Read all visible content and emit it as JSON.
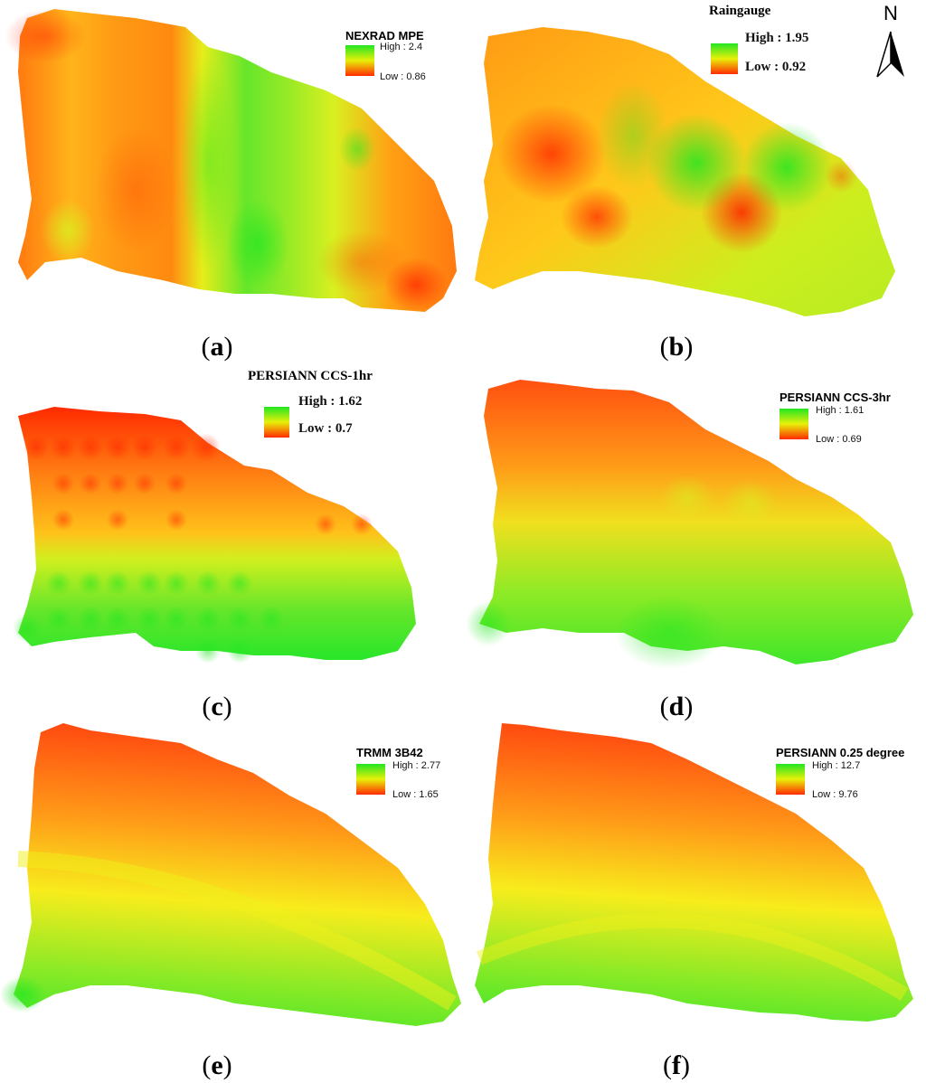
{
  "panels": [
    {
      "id": "a",
      "caption": "a",
      "legend": {
        "title": "NEXRAD MPE",
        "high": "High : 2.4",
        "low": "Low : 0.86"
      }
    },
    {
      "id": "b",
      "caption": "b",
      "legend": {
        "title": "Raingauge",
        "high": "High : 1.95",
        "low": "Low : 0.92"
      }
    },
    {
      "id": "c",
      "caption": "c",
      "legend": {
        "title": "PERSIANN CCS-1hr",
        "high": "High : 1.62",
        "low": "Low : 0.7"
      }
    },
    {
      "id": "d",
      "caption": "d",
      "legend": {
        "title": "PERSIANN CCS-3hr",
        "high": "High : 1.61",
        "low": "Low : 0.69"
      }
    },
    {
      "id": "e",
      "caption": "e",
      "legend": {
        "title": "TRMM 3B42",
        "high": "High : 2.77",
        "low": "Low : 1.65"
      }
    },
    {
      "id": "f",
      "caption": "f",
      "legend": {
        "title": "PERSIANN 0.25 degree",
        "high": "High : 12.7",
        "low": "Low : 9.76"
      }
    }
  ],
  "north_arrow": {
    "label": "N",
    "icon": "north-arrow-icon"
  },
  "colors": {
    "high": "#22e622",
    "mid": "#e8f00a",
    "low": "#ff2a00",
    "mid_orange": "#ff9a1a"
  }
}
